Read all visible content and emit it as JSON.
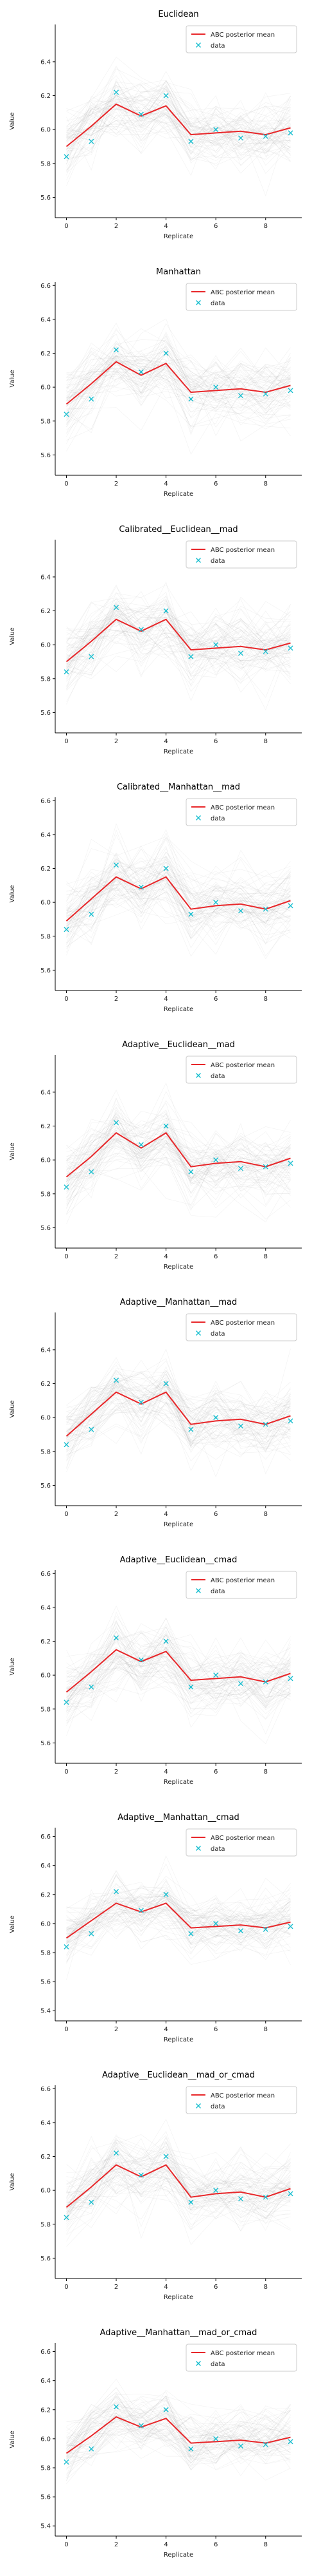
{
  "chart_data": [
    {
      "type": "line",
      "title": "Euclidean",
      "xlabel": "Replicate",
      "ylabel": "Value",
      "x": [
        0,
        1,
        2,
        3,
        4,
        5,
        6,
        7,
        8,
        9
      ],
      "xticks": [
        0,
        2,
        4,
        6,
        8
      ],
      "ylim": [
        5.48,
        6.62
      ],
      "yticks": [
        5.6,
        5.8,
        6.0,
        6.2,
        6.4
      ],
      "legend": {
        "position": "top-right",
        "entries": [
          "ABC posterior mean",
          "data"
        ]
      },
      "series": [
        {
          "name": "ABC posterior mean",
          "values": [
            5.9,
            6.02,
            6.15,
            6.08,
            6.14,
            5.97,
            5.98,
            5.99,
            5.97,
            6.01
          ]
        },
        {
          "name": "data",
          "values": [
            5.84,
            5.93,
            6.22,
            6.09,
            6.2,
            5.93,
            6.0,
            5.95,
            5.96,
            5.98
          ]
        }
      ]
    },
    {
      "type": "line",
      "title": "Manhattan",
      "xlabel": "Replicate",
      "ylabel": "Value",
      "x": [
        0,
        1,
        2,
        3,
        4,
        5,
        6,
        7,
        8,
        9
      ],
      "xticks": [
        0,
        2,
        4,
        6,
        8
      ],
      "ylim": [
        5.48,
        6.62
      ],
      "yticks": [
        5.6,
        5.8,
        6.0,
        6.2,
        6.4,
        6.6
      ],
      "legend": {
        "position": "top-right",
        "entries": [
          "ABC posterior mean",
          "data"
        ]
      },
      "series": [
        {
          "name": "ABC posterior mean",
          "values": [
            5.9,
            6.02,
            6.15,
            6.07,
            6.14,
            5.97,
            5.98,
            5.99,
            5.97,
            6.01
          ]
        },
        {
          "name": "data",
          "values": [
            5.84,
            5.93,
            6.22,
            6.09,
            6.2,
            5.93,
            6.0,
            5.95,
            5.96,
            5.98
          ]
        }
      ]
    },
    {
      "type": "line",
      "title": "Calibrated__Euclidean__mad",
      "xlabel": "Replicate",
      "ylabel": "Value",
      "x": [
        0,
        1,
        2,
        3,
        4,
        5,
        6,
        7,
        8,
        9
      ],
      "xticks": [
        0,
        2,
        4,
        6,
        8
      ],
      "ylim": [
        5.48,
        6.62
      ],
      "yticks": [
        5.6,
        5.8,
        6.0,
        6.2,
        6.4
      ],
      "legend": {
        "position": "top-right",
        "entries": [
          "ABC posterior mean",
          "data"
        ]
      },
      "series": [
        {
          "name": "ABC posterior mean",
          "values": [
            5.9,
            6.02,
            6.15,
            6.08,
            6.15,
            5.97,
            5.98,
            5.99,
            5.97,
            6.01
          ]
        },
        {
          "name": "data",
          "values": [
            5.84,
            5.93,
            6.22,
            6.09,
            6.2,
            5.93,
            6.0,
            5.95,
            5.96,
            5.98
          ]
        }
      ]
    },
    {
      "type": "line",
      "title": "Calibrated__Manhattan__mad",
      "xlabel": "Replicate",
      "ylabel": "Value",
      "x": [
        0,
        1,
        2,
        3,
        4,
        5,
        6,
        7,
        8,
        9
      ],
      "xticks": [
        0,
        2,
        4,
        6,
        8
      ],
      "ylim": [
        5.48,
        6.62
      ],
      "yticks": [
        5.6,
        5.8,
        6.0,
        6.2,
        6.4,
        6.6
      ],
      "legend": {
        "position": "top-right",
        "entries": [
          "ABC posterior mean",
          "data"
        ]
      },
      "series": [
        {
          "name": "ABC posterior mean",
          "values": [
            5.89,
            6.02,
            6.15,
            6.08,
            6.15,
            5.96,
            5.98,
            5.99,
            5.96,
            6.01
          ]
        },
        {
          "name": "data",
          "values": [
            5.84,
            5.93,
            6.22,
            6.09,
            6.2,
            5.93,
            6.0,
            5.95,
            5.96,
            5.98
          ]
        }
      ]
    },
    {
      "type": "line",
      "title": "Adaptive__Euclidean__mad",
      "xlabel": "Replicate",
      "ylabel": "Value",
      "x": [
        0,
        1,
        2,
        3,
        4,
        5,
        6,
        7,
        8,
        9
      ],
      "xticks": [
        0,
        2,
        4,
        6,
        8
      ],
      "ylim": [
        5.48,
        6.62
      ],
      "yticks": [
        5.6,
        5.8,
        6.0,
        6.2,
        6.4
      ],
      "legend": {
        "position": "top-right",
        "entries": [
          "ABC posterior mean",
          "data"
        ]
      },
      "series": [
        {
          "name": "ABC posterior mean",
          "values": [
            5.9,
            6.02,
            6.16,
            6.07,
            6.16,
            5.96,
            5.98,
            5.99,
            5.96,
            6.01
          ]
        },
        {
          "name": "data",
          "values": [
            5.84,
            5.93,
            6.22,
            6.09,
            6.2,
            5.93,
            6.0,
            5.95,
            5.96,
            5.98
          ]
        }
      ]
    },
    {
      "type": "line",
      "title": "Adaptive__Manhattan__mad",
      "xlabel": "Replicate",
      "ylabel": "Value",
      "x": [
        0,
        1,
        2,
        3,
        4,
        5,
        6,
        7,
        8,
        9
      ],
      "xticks": [
        0,
        2,
        4,
        6,
        8
      ],
      "ylim": [
        5.48,
        6.62
      ],
      "yticks": [
        5.6,
        5.8,
        6.0,
        6.2,
        6.4
      ],
      "legend": {
        "position": "top-right",
        "entries": [
          "ABC posterior mean",
          "data"
        ]
      },
      "series": [
        {
          "name": "ABC posterior mean",
          "values": [
            5.89,
            6.02,
            6.15,
            6.08,
            6.15,
            5.96,
            5.98,
            5.99,
            5.96,
            6.01
          ]
        },
        {
          "name": "data",
          "values": [
            5.84,
            5.93,
            6.22,
            6.09,
            6.2,
            5.93,
            6.0,
            5.95,
            5.96,
            5.98
          ]
        }
      ]
    },
    {
      "type": "line",
      "title": "Adaptive__Euclidean__cmad",
      "xlabel": "Replicate",
      "ylabel": "Value",
      "x": [
        0,
        1,
        2,
        3,
        4,
        5,
        6,
        7,
        8,
        9
      ],
      "xticks": [
        0,
        2,
        4,
        6,
        8
      ],
      "ylim": [
        5.48,
        6.62
      ],
      "yticks": [
        5.6,
        5.8,
        6.0,
        6.2,
        6.4,
        6.6
      ],
      "legend": {
        "position": "top-right",
        "entries": [
          "ABC posterior mean",
          "data"
        ]
      },
      "series": [
        {
          "name": "ABC posterior mean",
          "values": [
            5.9,
            6.02,
            6.15,
            6.08,
            6.14,
            5.97,
            5.98,
            5.99,
            5.96,
            6.01
          ]
        },
        {
          "name": "data",
          "values": [
            5.84,
            5.93,
            6.22,
            6.09,
            6.2,
            5.93,
            6.0,
            5.95,
            5.96,
            5.98
          ]
        }
      ]
    },
    {
      "type": "line",
      "title": "Adaptive__Manhattan__cmad",
      "xlabel": "Replicate",
      "ylabel": "Value",
      "x": [
        0,
        1,
        2,
        3,
        4,
        5,
        6,
        7,
        8,
        9
      ],
      "xticks": [
        0,
        2,
        4,
        6,
        8
      ],
      "ylim": [
        5.33,
        6.66
      ],
      "yticks": [
        5.4,
        5.6,
        5.8,
        6.0,
        6.2,
        6.4,
        6.6
      ],
      "legend": {
        "position": "top-right",
        "entries": [
          "ABC posterior mean",
          "data"
        ]
      },
      "series": [
        {
          "name": "ABC posterior mean",
          "values": [
            5.9,
            6.02,
            6.14,
            6.08,
            6.14,
            5.97,
            5.98,
            5.99,
            5.97,
            6.01
          ]
        },
        {
          "name": "data",
          "values": [
            5.84,
            5.93,
            6.22,
            6.09,
            6.2,
            5.93,
            6.0,
            5.95,
            5.96,
            5.98
          ]
        }
      ]
    },
    {
      "type": "line",
      "title": "Adaptive__Euclidean__mad_or_cmad",
      "xlabel": "Replicate",
      "ylabel": "Value",
      "x": [
        0,
        1,
        2,
        3,
        4,
        5,
        6,
        7,
        8,
        9
      ],
      "xticks": [
        0,
        2,
        4,
        6,
        8
      ],
      "ylim": [
        5.48,
        6.62
      ],
      "yticks": [
        5.6,
        5.8,
        6.0,
        6.2,
        6.4,
        6.6
      ],
      "legend": {
        "position": "top-right",
        "entries": [
          "ABC posterior mean",
          "data"
        ]
      },
      "series": [
        {
          "name": "ABC posterior mean",
          "values": [
            5.9,
            6.02,
            6.15,
            6.08,
            6.15,
            5.96,
            5.98,
            5.99,
            5.96,
            6.01
          ]
        },
        {
          "name": "data",
          "values": [
            5.84,
            5.93,
            6.22,
            6.09,
            6.2,
            5.93,
            6.0,
            5.95,
            5.96,
            5.98
          ]
        }
      ]
    },
    {
      "type": "line",
      "title": "Adaptive__Manhattan__mad_or_cmad",
      "xlabel": "Replicate",
      "ylabel": "Value",
      "x": [
        0,
        1,
        2,
        3,
        4,
        5,
        6,
        7,
        8,
        9
      ],
      "xticks": [
        0,
        2,
        4,
        6,
        8
      ],
      "ylim": [
        5.33,
        6.66
      ],
      "yticks": [
        5.4,
        5.6,
        5.8,
        6.0,
        6.2,
        6.4,
        6.6
      ],
      "legend": {
        "position": "top-right",
        "entries": [
          "ABC posterior mean",
          "data"
        ]
      },
      "series": [
        {
          "name": "ABC posterior mean",
          "values": [
            5.9,
            6.02,
            6.15,
            6.08,
            6.14,
            5.97,
            5.98,
            5.99,
            5.97,
            6.01
          ]
        },
        {
          "name": "data",
          "values": [
            5.84,
            5.93,
            6.22,
            6.09,
            6.2,
            5.93,
            6.0,
            5.95,
            5.96,
            5.98
          ]
        }
      ]
    }
  ],
  "colors": {
    "posterior_mean": "#e8272a",
    "data_marker": "#17becf",
    "posterior_samples": "#8c8c8c",
    "axis": "#000000"
  }
}
